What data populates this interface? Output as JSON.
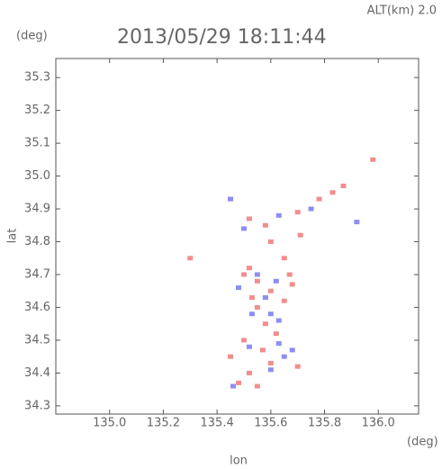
{
  "chart_data": {
    "type": "scatter",
    "title": "2013/05/29 18:11:44",
    "subtitle": "ALT(km) 2.0",
    "y_unit": "(deg)",
    "x_unit": "(deg)",
    "x_label": "lon",
    "y_label": "lat",
    "xlim": [
      134.8,
      136.15
    ],
    "ylim": [
      34.275,
      35.358
    ],
    "xticks": [
      {
        "value": 135,
        "label": "135.0"
      },
      135.2,
      135.4,
      135.6,
      135.8,
      {
        "value": 136,
        "label": "136.0"
      }
    ],
    "yticks": [
      34.3,
      34.4,
      34.5,
      34.6,
      34.7,
      34.8,
      34.9,
      {
        "value": 35,
        "label": "35.0"
      },
      35.1,
      35.2,
      35.3
    ],
    "series": [
      {
        "color": "#f07070",
        "x": [
          135.98,
          135.87,
          135.83,
          135.78,
          135.7,
          135.58,
          135.52,
          135.6,
          135.71,
          135.52,
          135.5,
          135.55,
          135.6,
          135.65,
          135.68,
          135.55,
          135.58,
          135.62,
          135.5,
          135.57,
          135.6,
          135.52,
          135.48,
          135.55,
          135.7,
          135.45,
          135.3,
          135.65,
          135.67,
          135.53
        ],
        "y": [
          35.05,
          34.97,
          34.95,
          34.93,
          34.89,
          34.85,
          34.87,
          34.8,
          34.82,
          34.72,
          34.7,
          34.68,
          34.65,
          34.62,
          34.67,
          34.6,
          34.55,
          34.52,
          34.5,
          34.47,
          34.43,
          34.4,
          34.37,
          34.36,
          34.42,
          34.45,
          34.75,
          34.75,
          34.7,
          34.63
        ]
      },
      {
        "color": "#7070f0",
        "x": [
          135.92,
          135.5,
          135.63,
          135.75,
          135.48,
          135.53,
          135.58,
          135.6,
          135.63,
          135.68,
          135.63,
          135.6,
          135.46,
          135.65,
          135.52,
          135.45,
          135.55,
          135.62
        ],
        "y": [
          34.86,
          34.84,
          34.88,
          34.9,
          34.66,
          34.58,
          34.63,
          34.58,
          34.56,
          34.47,
          34.49,
          34.41,
          34.36,
          34.45,
          34.48,
          34.93,
          34.7,
          34.68
        ]
      }
    ]
  }
}
